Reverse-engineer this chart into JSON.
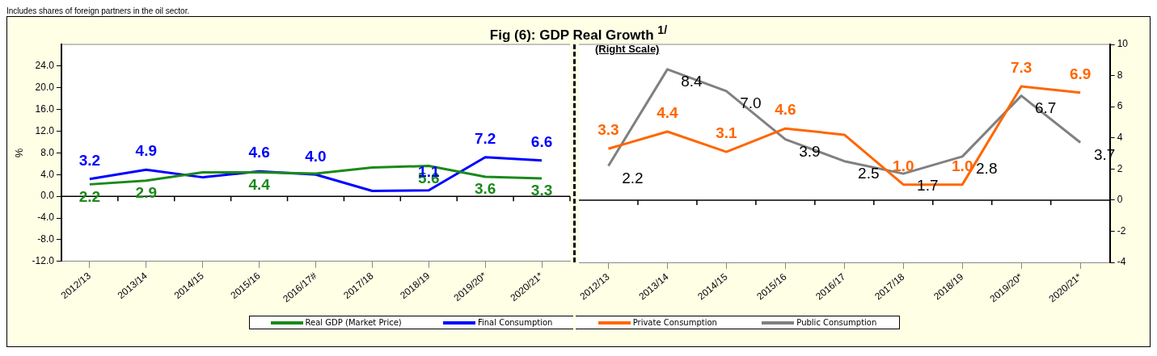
{
  "chart_data": [
    {
      "type": "line",
      "title": "Fig (6): GDP Real Growth $^{1/}$",
      "ylabel": "%",
      "annotations": [
        "Includes shares of foreign partners in the oil sector."
      ],
      "categories": [
        "2012/13",
        "2013/14",
        "2014/15",
        "2015/16",
        "2016/17#",
        "2017/18",
        "2018/19",
        "2019/20*",
        "2020/21*"
      ],
      "series": [
        {
          "name": "Real GDP (Market Price)",
          "color": "#1a8a1a",
          "values": [
            2.2,
            2.9,
            4.4,
            4.4,
            4.2,
            5.3,
            5.6,
            3.6,
            3.3
          ],
          "value_labels": [
            "2.2",
            "2.9",
            null,
            "4.4",
            null,
            null,
            "5.6",
            "3.6",
            "3.3"
          ]
        },
        {
          "name": "Final Consumption",
          "color": "#0000ff",
          "values": [
            3.2,
            4.9,
            3.5,
            4.6,
            4.0,
            1.0,
            1.1,
            7.2,
            6.6
          ],
          "value_labels": [
            "3.2",
            "4.9",
            null,
            "4.6",
            "4.0",
            null,
            "1.1",
            "7.2",
            "6.6"
          ]
        }
      ],
      "ylim": [
        -12,
        28
      ],
      "yticks": [
        {
          "value": -12,
          "label": "-12.0"
        },
        {
          "value": -8,
          "label": "-8.0"
        },
        {
          "value": -4,
          "label": "-4.0"
        },
        {
          "value": 0,
          "label": "0.0"
        },
        {
          "value": 4,
          "label": "4.0"
        },
        {
          "value": 8,
          "label": "8.0"
        },
        {
          "value": 12,
          "label": "12.0"
        },
        {
          "value": 16,
          "label": "16.0"
        },
        {
          "value": 20,
          "label": "20.0"
        },
        {
          "value": 24,
          "label": "24.0"
        }
      ],
      "ref_lines": [
        {
          "axis": "y",
          "value": 0,
          "color": "#000000"
        }
      ],
      "grid": false,
      "legend": "bottom",
      "marker": "none",
      "line_style": "solid"
    },
    {
      "type": "line",
      "annotations": [
        "(Right Scale)"
      ],
      "categories": [
        "2012/13",
        "2013/14",
        "2014/15",
        "2015/16",
        "2016/17",
        "2017/18",
        "2018/19",
        "2019/20*",
        "2020/21*"
      ],
      "series": [
        {
          "name": "Private Consumption",
          "color": "#ff6600",
          "axis": "y2",
          "values": [
            3.3,
            4.4,
            3.1,
            4.6,
            4.2,
            1.0,
            1.0,
            7.3,
            6.9
          ],
          "value_labels": [
            "3.3",
            "4.4",
            "3.1",
            "4.6",
            null,
            "1.0",
            "1.0",
            "7.3",
            "6.9"
          ]
        },
        {
          "name": "Public Consumption",
          "color": "#808080",
          "axis": "y2",
          "values": [
            2.2,
            8.4,
            7.0,
            3.9,
            2.5,
            1.7,
            2.8,
            6.7,
            3.7
          ],
          "value_labels": [
            "2.2",
            "8.4",
            "7.0",
            "3.9",
            "2.5",
            "1.7",
            "2.8",
            "6.7",
            "3.7"
          ]
        }
      ],
      "y2lim": [
        -4,
        10
      ],
      "y2ticks": [
        -4,
        -2,
        0,
        2,
        4,
        6,
        8,
        10
      ],
      "ref_lines": [
        {
          "axis": "y2",
          "value": 0,
          "color": "#000000"
        }
      ],
      "grid": false,
      "legend": "bottom",
      "marker": "none",
      "line_style": "solid"
    }
  ]
}
